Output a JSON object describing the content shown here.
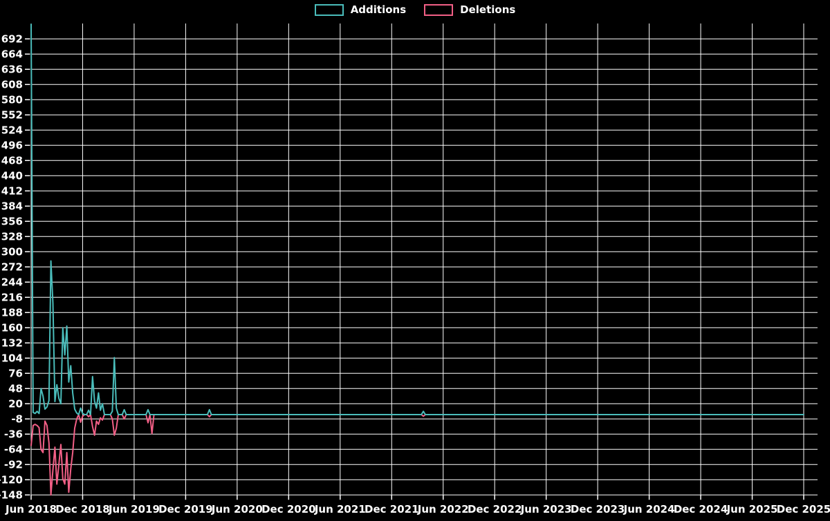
{
  "legend": {
    "additions_label": "Additions",
    "deletions_label": "Deletions"
  },
  "colors": {
    "additions": "#4abdbb",
    "deletions": "#f25f86",
    "grid": "#ffffff",
    "background": "#000000",
    "text": "#ffffff"
  },
  "chart_data": {
    "type": "line",
    "title": "",
    "xlabel": "",
    "ylabel": "",
    "legend_position": "top-center",
    "grid": true,
    "weeks_total": 391,
    "x_axis": {
      "tick_labels": [
        "Jun 2018",
        "Dec 2018",
        "Jun 2019",
        "Dec 2019",
        "Jun 2020",
        "Dec 2020",
        "Jun 2021",
        "Dec 2021",
        "Jun 2022",
        "Dec 2022",
        "Jun 2023",
        "Dec 2023",
        "Jun 2024",
        "Dec 2024",
        "Jun 2025",
        "Dec 2025"
      ],
      "tick_weeks": [
        0,
        26,
        52,
        78,
        104,
        130,
        156,
        182,
        208,
        234,
        260,
        286,
        312,
        338,
        364,
        390
      ]
    },
    "y_axis": {
      "tick_values": [
        692,
        664,
        636,
        608,
        580,
        552,
        524,
        496,
        468,
        440,
        412,
        384,
        356,
        328,
        300,
        272,
        244,
        216,
        188,
        160,
        132,
        104,
        76,
        48,
        20,
        -8,
        -36,
        -64,
        -92,
        -120,
        -148
      ],
      "tick_step": 28,
      "plot_top_value": 720,
      "plot_bottom_value": -156
    },
    "series": [
      {
        "name": "Additions",
        "baseline": 0,
        "points_nonzero": [
          [
            0,
            719
          ],
          [
            1,
            4
          ],
          [
            2,
            2
          ],
          [
            3,
            6
          ],
          [
            4,
            2
          ],
          [
            5,
            48
          ],
          [
            6,
            34
          ],
          [
            7,
            10
          ],
          [
            8,
            14
          ],
          [
            9,
            26
          ],
          [
            10,
            283
          ],
          [
            11,
            205
          ],
          [
            12,
            24
          ],
          [
            13,
            55
          ],
          [
            14,
            30
          ],
          [
            15,
            20
          ],
          [
            16,
            160
          ],
          [
            17,
            110
          ],
          [
            18,
            163
          ],
          [
            19,
            60
          ],
          [
            20,
            90
          ],
          [
            21,
            40
          ],
          [
            22,
            10
          ],
          [
            23,
            3
          ],
          [
            25,
            12
          ],
          [
            26,
            2
          ],
          [
            29,
            8
          ],
          [
            31,
            70
          ],
          [
            32,
            25
          ],
          [
            33,
            12
          ],
          [
            34,
            40
          ],
          [
            35,
            8
          ],
          [
            36,
            20
          ],
          [
            41,
            6
          ],
          [
            42,
            105
          ],
          [
            43,
            12
          ],
          [
            47,
            9
          ],
          [
            59,
            9
          ],
          [
            90,
            9
          ],
          [
            198,
            6
          ]
        ]
      },
      {
        "name": "Deletions",
        "baseline": 0,
        "points_nonzero": [
          [
            0,
            -57
          ],
          [
            1,
            -20
          ],
          [
            2,
            -18
          ],
          [
            3,
            -20
          ],
          [
            4,
            -24
          ],
          [
            5,
            -64
          ],
          [
            6,
            -70
          ],
          [
            7,
            -12
          ],
          [
            8,
            -20
          ],
          [
            9,
            -52
          ],
          [
            10,
            -148
          ],
          [
            11,
            -102
          ],
          [
            12,
            -60
          ],
          [
            13,
            -128
          ],
          [
            14,
            -92
          ],
          [
            15,
            -55
          ],
          [
            16,
            -118
          ],
          [
            17,
            -128
          ],
          [
            18,
            -70
          ],
          [
            19,
            -143
          ],
          [
            20,
            -100
          ],
          [
            21,
            -70
          ],
          [
            22,
            -25
          ],
          [
            23,
            -8
          ],
          [
            25,
            -14
          ],
          [
            26,
            -3
          ],
          [
            29,
            -4
          ],
          [
            31,
            -22
          ],
          [
            32,
            -38
          ],
          [
            33,
            -12
          ],
          [
            34,
            -18
          ],
          [
            35,
            -6
          ],
          [
            36,
            -10
          ],
          [
            41,
            -8
          ],
          [
            42,
            -38
          ],
          [
            43,
            -25
          ],
          [
            47,
            -8
          ],
          [
            59,
            -15
          ],
          [
            61,
            -35
          ],
          [
            90,
            -4
          ],
          [
            198,
            -3
          ]
        ]
      }
    ]
  }
}
